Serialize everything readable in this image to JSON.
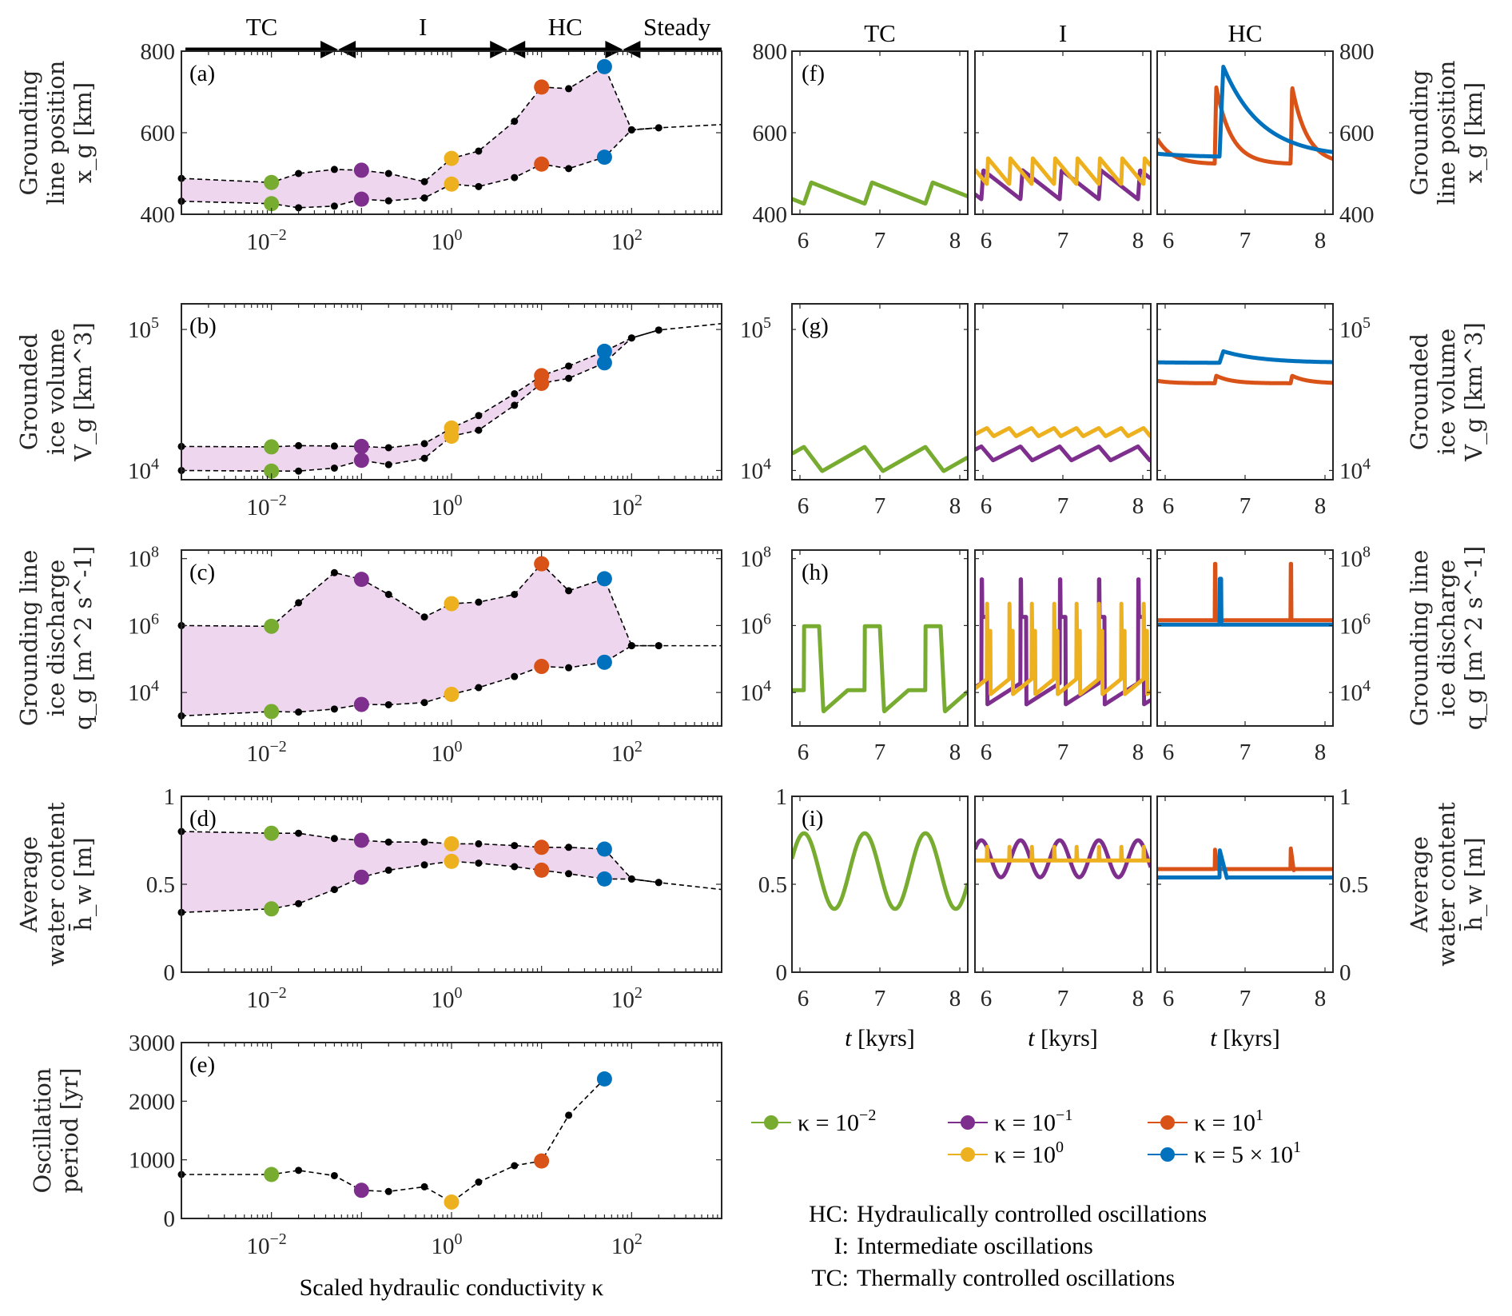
{
  "colors": {
    "k_1e-2": "#77AC30",
    "k_1e-1": "#7E2F8E",
    "k_1e0": "#EDB120",
    "k_1e1": "#D95319",
    "k_5e1": "#0072BD",
    "band_fill": "#EFD6EF",
    "black": "#000000"
  },
  "regime_bar": {
    "labels": [
      "TC",
      "I",
      "HC",
      "Steady"
    ],
    "boundaries_kappa": [
      0.001,
      0.055,
      4.2,
      80,
      1000
    ]
  },
  "column_titles": [
    "TC",
    "I",
    "HC"
  ],
  "xaxis_left": {
    "label": "Scaled hydraulic conductivity κ",
    "ticks": [
      {
        "value": 0.01,
        "base": "10",
        "exp": "−2"
      },
      {
        "value": 1,
        "base": "10",
        "exp": "0"
      },
      {
        "value": 100,
        "base": "10",
        "exp": "2"
      }
    ],
    "range": [
      0.001,
      1000
    ]
  },
  "xaxis_right": {
    "label_var": "t",
    "label_unit": "[kyrs]",
    "ticks": [
      "6",
      "7",
      "8"
    ],
    "range": [
      5.9,
      8.1
    ]
  },
  "legend": [
    {
      "key": "k_1e-2",
      "text": "κ = 10",
      "sup": "−2"
    },
    {
      "key": "k_1e-1",
      "text": "κ = 10",
      "sup": "−1"
    },
    {
      "key": "k_1e1",
      "text": "κ = 10",
      "sup": "1"
    },
    {
      "key": "k_1e0",
      "text": "κ = 10",
      "sup": "0"
    },
    {
      "key": "k_5e1",
      "text": "κ = 5 × 10",
      "sup": "1"
    }
  ],
  "notes": [
    {
      "abbr": "HC:",
      "text": "Hydraulically controlled oscillations"
    },
    {
      "abbr": "I:",
      "text": "Intermediate oscillations"
    },
    {
      "abbr": "TC:",
      "text": "Thermally controlled oscillations"
    }
  ],
  "chart_data": [
    {
      "id": "a",
      "type": "scatter",
      "panel_tag": "(a)",
      "title": "",
      "ylabel_lines": [
        "Grounding",
        "line position",
        "x_g [km]"
      ],
      "xscale": "log",
      "yscale": "linear",
      "ylim": [
        400,
        800
      ],
      "yticks": [
        {
          "v": 400,
          "t": "400"
        },
        {
          "v": 600,
          "t": "600"
        },
        {
          "v": 800,
          "t": "800"
        }
      ],
      "kappa": [
        0.001,
        0.01,
        0.02,
        0.05,
        0.1,
        0.2,
        0.5,
        1,
        2,
        5,
        10,
        20,
        50,
        100,
        200
      ],
      "upper": [
        488,
        478,
        500,
        510,
        508,
        500,
        480,
        537,
        555,
        628,
        712,
        708,
        762,
        607,
        612
      ],
      "lower": [
        432,
        426,
        416,
        420,
        437,
        433,
        440,
        474,
        468,
        490,
        523,
        512,
        540,
        607,
        612
      ],
      "steady_tail": {
        "kappa": [
          100,
          200,
          1000
        ],
        "values": [
          607,
          612,
          620
        ]
      },
      "highlight": [
        {
          "key": "k_1e-2",
          "kappa": 0.01,
          "upper": 478,
          "lower": 426
        },
        {
          "key": "k_1e-1",
          "kappa": 0.1,
          "upper": 508,
          "lower": 437
        },
        {
          "key": "k_1e0",
          "kappa": 1,
          "upper": 537,
          "lower": 474
        },
        {
          "key": "k_1e1",
          "kappa": 10,
          "upper": 712,
          "lower": 523
        },
        {
          "key": "k_5e1",
          "kappa": 50,
          "upper": 762,
          "lower": 540
        }
      ]
    },
    {
      "id": "b",
      "type": "scatter",
      "panel_tag": "(b)",
      "ylabel_lines": [
        "Grounded",
        "ice volume",
        "V_g [km^3]"
      ],
      "xscale": "log",
      "yscale": "log",
      "ylim": [
        8600,
        152000
      ],
      "yticks": [
        {
          "v": 10000,
          "t": "10",
          "e": "4"
        },
        {
          "v": 100000,
          "t": "10",
          "e": "5"
        }
      ],
      "kappa": [
        0.001,
        0.01,
        0.02,
        0.05,
        0.1,
        0.2,
        0.5,
        1,
        2,
        5,
        10,
        20,
        50,
        100,
        200
      ],
      "upper": [
        14800,
        14700,
        15000,
        14900,
        14800,
        14500,
        15500,
        20000,
        24500,
        35000,
        47000,
        55000,
        70000,
        87000,
        99000
      ],
      "lower": [
        10000,
        9900,
        9900,
        10400,
        11800,
        11000,
        12200,
        17500,
        19300,
        29000,
        41500,
        45000,
        58000,
        87000,
        99000
      ],
      "steady_tail": {
        "kappa": [
          100,
          200,
          1000
        ],
        "values": [
          87000,
          99000,
          110000
        ]
      },
      "highlight": [
        {
          "key": "k_1e-2",
          "kappa": 0.01,
          "upper": 14700,
          "lower": 9900
        },
        {
          "key": "k_1e-1",
          "kappa": 0.1,
          "upper": 14800,
          "lower": 11800
        },
        {
          "key": "k_1e0",
          "kappa": 1,
          "upper": 20000,
          "lower": 17500
        },
        {
          "key": "k_1e1",
          "kappa": 10,
          "upper": 47000,
          "lower": 41500
        },
        {
          "key": "k_5e1",
          "kappa": 50,
          "upper": 70000,
          "lower": 58000
        }
      ]
    },
    {
      "id": "c",
      "type": "scatter",
      "panel_tag": "(c)",
      "ylabel_lines": [
        "Grounding line",
        "ice discharge",
        "q_g [m^2 s^-1]"
      ],
      "xscale": "log",
      "yscale": "log",
      "ylim": [
        1000,
        180000000
      ],
      "yticks": [
        {
          "v": 10000,
          "t": "10",
          "e": "4"
        },
        {
          "v": 1000000,
          "t": "10",
          "e": "6"
        },
        {
          "v": 100000000,
          "t": "10",
          "e": "8"
        }
      ],
      "kappa": [
        0.001,
        0.01,
        0.02,
        0.05,
        0.1,
        0.2,
        0.5,
        1,
        2,
        5,
        10,
        20,
        50,
        100,
        200
      ],
      "upper": [
        1000000,
        950000,
        4800000,
        38000000,
        24000000,
        8500000,
        1800000,
        4500000,
        5000000,
        8500000,
        70000000,
        11000000,
        25000000,
        250000,
        250000
      ],
      "lower": [
        2000,
        2700,
        2600,
        3200,
        4400,
        4300,
        5000,
        8800,
        14000,
        30000,
        60000,
        55000,
        80000,
        250000,
        250000
      ],
      "steady_tail": {
        "kappa": [
          100,
          200,
          1000
        ],
        "values": [
          250000,
          250000,
          250000
        ]
      },
      "highlight": [
        {
          "key": "k_1e-2",
          "kappa": 0.01,
          "upper": 950000,
          "lower": 2700
        },
        {
          "key": "k_1e-1",
          "kappa": 0.1,
          "upper": 24000000,
          "lower": 4400
        },
        {
          "key": "k_1e0",
          "kappa": 1,
          "upper": 4500000,
          "lower": 8800
        },
        {
          "key": "k_1e1",
          "kappa": 10,
          "upper": 70000000,
          "lower": 60000
        },
        {
          "key": "k_5e1",
          "kappa": 50,
          "upper": 25000000,
          "lower": 80000
        }
      ]
    },
    {
      "id": "d",
      "type": "scatter",
      "panel_tag": "(d)",
      "ylabel_lines": [
        "Average",
        "water content",
        "h̄_w [m]"
      ],
      "xscale": "log",
      "yscale": "linear",
      "ylim": [
        0,
        1
      ],
      "yticks": [
        {
          "v": 0,
          "t": "0"
        },
        {
          "v": 0.5,
          "t": "0.5"
        },
        {
          "v": 1,
          "t": "1"
        }
      ],
      "kappa": [
        0.001,
        0.01,
        0.02,
        0.05,
        0.1,
        0.2,
        0.5,
        1,
        2,
        5,
        10,
        20,
        50,
        100,
        200
      ],
      "upper": [
        0.8,
        0.79,
        0.79,
        0.76,
        0.75,
        0.74,
        0.74,
        0.73,
        0.73,
        0.72,
        0.71,
        0.71,
        0.7,
        0.53,
        0.51
      ],
      "lower": [
        0.34,
        0.36,
        0.39,
        0.47,
        0.54,
        0.58,
        0.61,
        0.63,
        0.62,
        0.6,
        0.58,
        0.56,
        0.53,
        0.53,
        0.51
      ],
      "steady_tail": {
        "kappa": [
          100,
          200,
          1000
        ],
        "values": [
          0.53,
          0.51,
          0.47
        ]
      },
      "highlight": [
        {
          "key": "k_1e-2",
          "kappa": 0.01,
          "upper": 0.79,
          "lower": 0.36
        },
        {
          "key": "k_1e-1",
          "kappa": 0.1,
          "upper": 0.75,
          "lower": 0.54
        },
        {
          "key": "k_1e0",
          "kappa": 1,
          "upper": 0.73,
          "lower": 0.63
        },
        {
          "key": "k_1e1",
          "kappa": 10,
          "upper": 0.71,
          "lower": 0.58
        },
        {
          "key": "k_5e1",
          "kappa": 50,
          "upper": 0.7,
          "lower": 0.53
        }
      ]
    },
    {
      "id": "e",
      "type": "scatter",
      "panel_tag": "(e)",
      "ylabel_lines": [
        "Oscillation",
        "period [yr]"
      ],
      "xscale": "log",
      "yscale": "linear",
      "ylim": [
        0,
        3000
      ],
      "yticks": [
        {
          "v": 0,
          "t": "0"
        },
        {
          "v": 1000,
          "t": "1000"
        },
        {
          "v": 2000,
          "t": "2000"
        },
        {
          "v": 3000,
          "t": "3000"
        }
      ],
      "kappa": [
        0.001,
        0.01,
        0.02,
        0.05,
        0.1,
        0.2,
        0.5,
        1,
        2,
        5,
        10,
        20,
        50
      ],
      "values": [
        750,
        750,
        820,
        730,
        480,
        460,
        540,
        280,
        620,
        900,
        980,
        1760,
        2380
      ],
      "highlight": [
        {
          "key": "k_1e-2",
          "kappa": 0.01,
          "value": 750
        },
        {
          "key": "k_1e-1",
          "kappa": 0.1,
          "value": 480
        },
        {
          "key": "k_1e0",
          "kappa": 1,
          "value": 280
        },
        {
          "key": "k_1e1",
          "kappa": 10,
          "value": 980
        },
        {
          "key": "k_5e1",
          "kappa": 50,
          "value": 2380
        }
      ]
    },
    {
      "id": "f-i",
      "type": "line",
      "panel_tags": [
        "(f)",
        "(g)",
        "(h)",
        "(i)"
      ],
      "xlabel": "t [kyrs]",
      "xlim": [
        5.9,
        8.1
      ],
      "rows": [
        {
          "var": "x_g",
          "yscale": "linear",
          "ylim": [
            400,
            800
          ],
          "ylabel_lines": [
            "Grounding",
            "line position",
            "x_g [km]"
          ]
        },
        {
          "var": "V_g",
          "yscale": "log",
          "ylim": [
            8600,
            152000
          ],
          "ylabel_lines": [
            "Grounded",
            "ice volume",
            "V_g [km^3]"
          ]
        },
        {
          "var": "q_g",
          "yscale": "log",
          "ylim": [
            1000,
            180000000
          ],
          "ylabel_lines": [
            "Grounding line",
            "ice discharge",
            "q_g [m^2 s^-1]"
          ]
        },
        {
          "var": "h_w",
          "yscale": "linear",
          "ylim": [
            0,
            1
          ],
          "ylabel_lines": [
            "Average",
            "water content",
            "h̄_w [m]"
          ]
        }
      ],
      "series": [
        {
          "column": "TC",
          "key": "k_1e-2",
          "period_kyr": 0.76,
          "phase_kyr": 6.05,
          "xg": {
            "min": 426,
            "max": 478
          },
          "Vg": {
            "min": 9900,
            "max": 14700
          },
          "qg": {
            "min": 2700,
            "max": 950000
          },
          "hw": {
            "min": 0.36,
            "max": 0.79
          }
        },
        {
          "column": "I",
          "key": "k_1e-1",
          "period_kyr": 0.49,
          "phase_kyr": 5.98,
          "xg": {
            "min": 437,
            "max": 508
          },
          "Vg": {
            "min": 11800,
            "max": 14800
          },
          "qg": {
            "min": 4400,
            "max": 24000000
          },
          "hw": {
            "min": 0.54,
            "max": 0.75
          }
        },
        {
          "column": "I",
          "key": "k_1e0",
          "period_kyr": 0.28,
          "phase_kyr": 6.05,
          "xg": {
            "min": 474,
            "max": 537
          },
          "Vg": {
            "min": 17500,
            "max": 20000
          },
          "qg": {
            "min": 8800,
            "max": 4500000
          },
          "hw": {
            "min": 0.63,
            "max": 0.73
          }
        },
        {
          "column": "HC",
          "key": "k_1e1",
          "period_kyr": 0.95,
          "phase_kyr": 6.62,
          "xg": {
            "min": 523,
            "max": 712
          },
          "Vg": {
            "min": 41500,
            "max": 47000
          },
          "qg": {
            "min": 60000,
            "max": 70000000
          },
          "hw": {
            "min": 0.58,
            "max": 0.71
          }
        },
        {
          "column": "HC",
          "key": "k_5e1",
          "period_kyr": 2.38,
          "phase_kyr": 6.68,
          "xg": {
            "min": 540,
            "max": 762
          },
          "Vg": {
            "min": 58000,
            "max": 70000
          },
          "qg": {
            "min": 80000,
            "max": 25000000
          },
          "hw": {
            "min": 0.53,
            "max": 0.7
          }
        }
      ]
    }
  ]
}
